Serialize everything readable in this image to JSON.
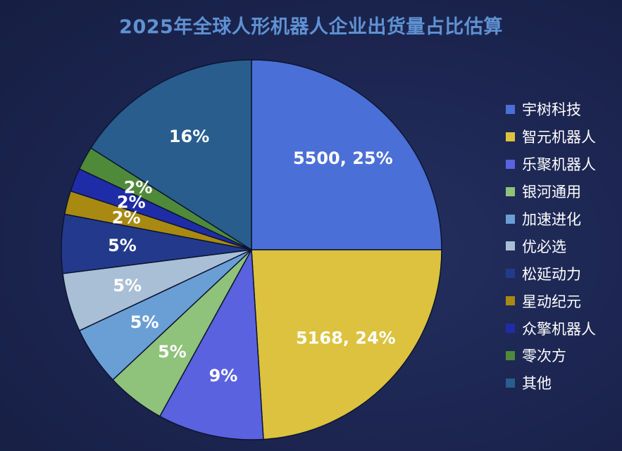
{
  "chart_data": {
    "type": "pie",
    "title": "2025年全球人形机器人企业出货量占比估算",
    "start_angle_deg": 0,
    "direction": "clockwise",
    "legend_position": "right",
    "slices": [
      {
        "name": "宇树科技",
        "value": 25,
        "label": "5500, 25%",
        "color": "#4a6fd6"
      },
      {
        "name": "智元机器人",
        "value": 24,
        "label": "5168, 24%",
        "color": "#dcc23e"
      },
      {
        "name": "乐聚机器人",
        "value": 9,
        "label": "9%",
        "color": "#5a62e0"
      },
      {
        "name": "银河通用",
        "value": 5,
        "label": "5%",
        "color": "#8fc27a"
      },
      {
        "name": "加速进化",
        "value": 5,
        "label": "5%",
        "color": "#6a9fd6"
      },
      {
        "name": "优必选",
        "value": 5,
        "label": "5%",
        "color": "#a9bfd6"
      },
      {
        "name": "松延动力",
        "value": 5,
        "label": "5%",
        "color": "#233a8c"
      },
      {
        "name": "星动纪元",
        "value": 2,
        "label": "2%",
        "color": "#a88a12"
      },
      {
        "name": "众擎机器人",
        "value": 2,
        "label": "2%",
        "color": "#1f2ca8"
      },
      {
        "name": "零次方",
        "value": 2,
        "label": "2%",
        "color": "#4f8a3a"
      },
      {
        "name": "其他",
        "value": 16,
        "label": "16%",
        "color": "#285d8e"
      }
    ]
  }
}
